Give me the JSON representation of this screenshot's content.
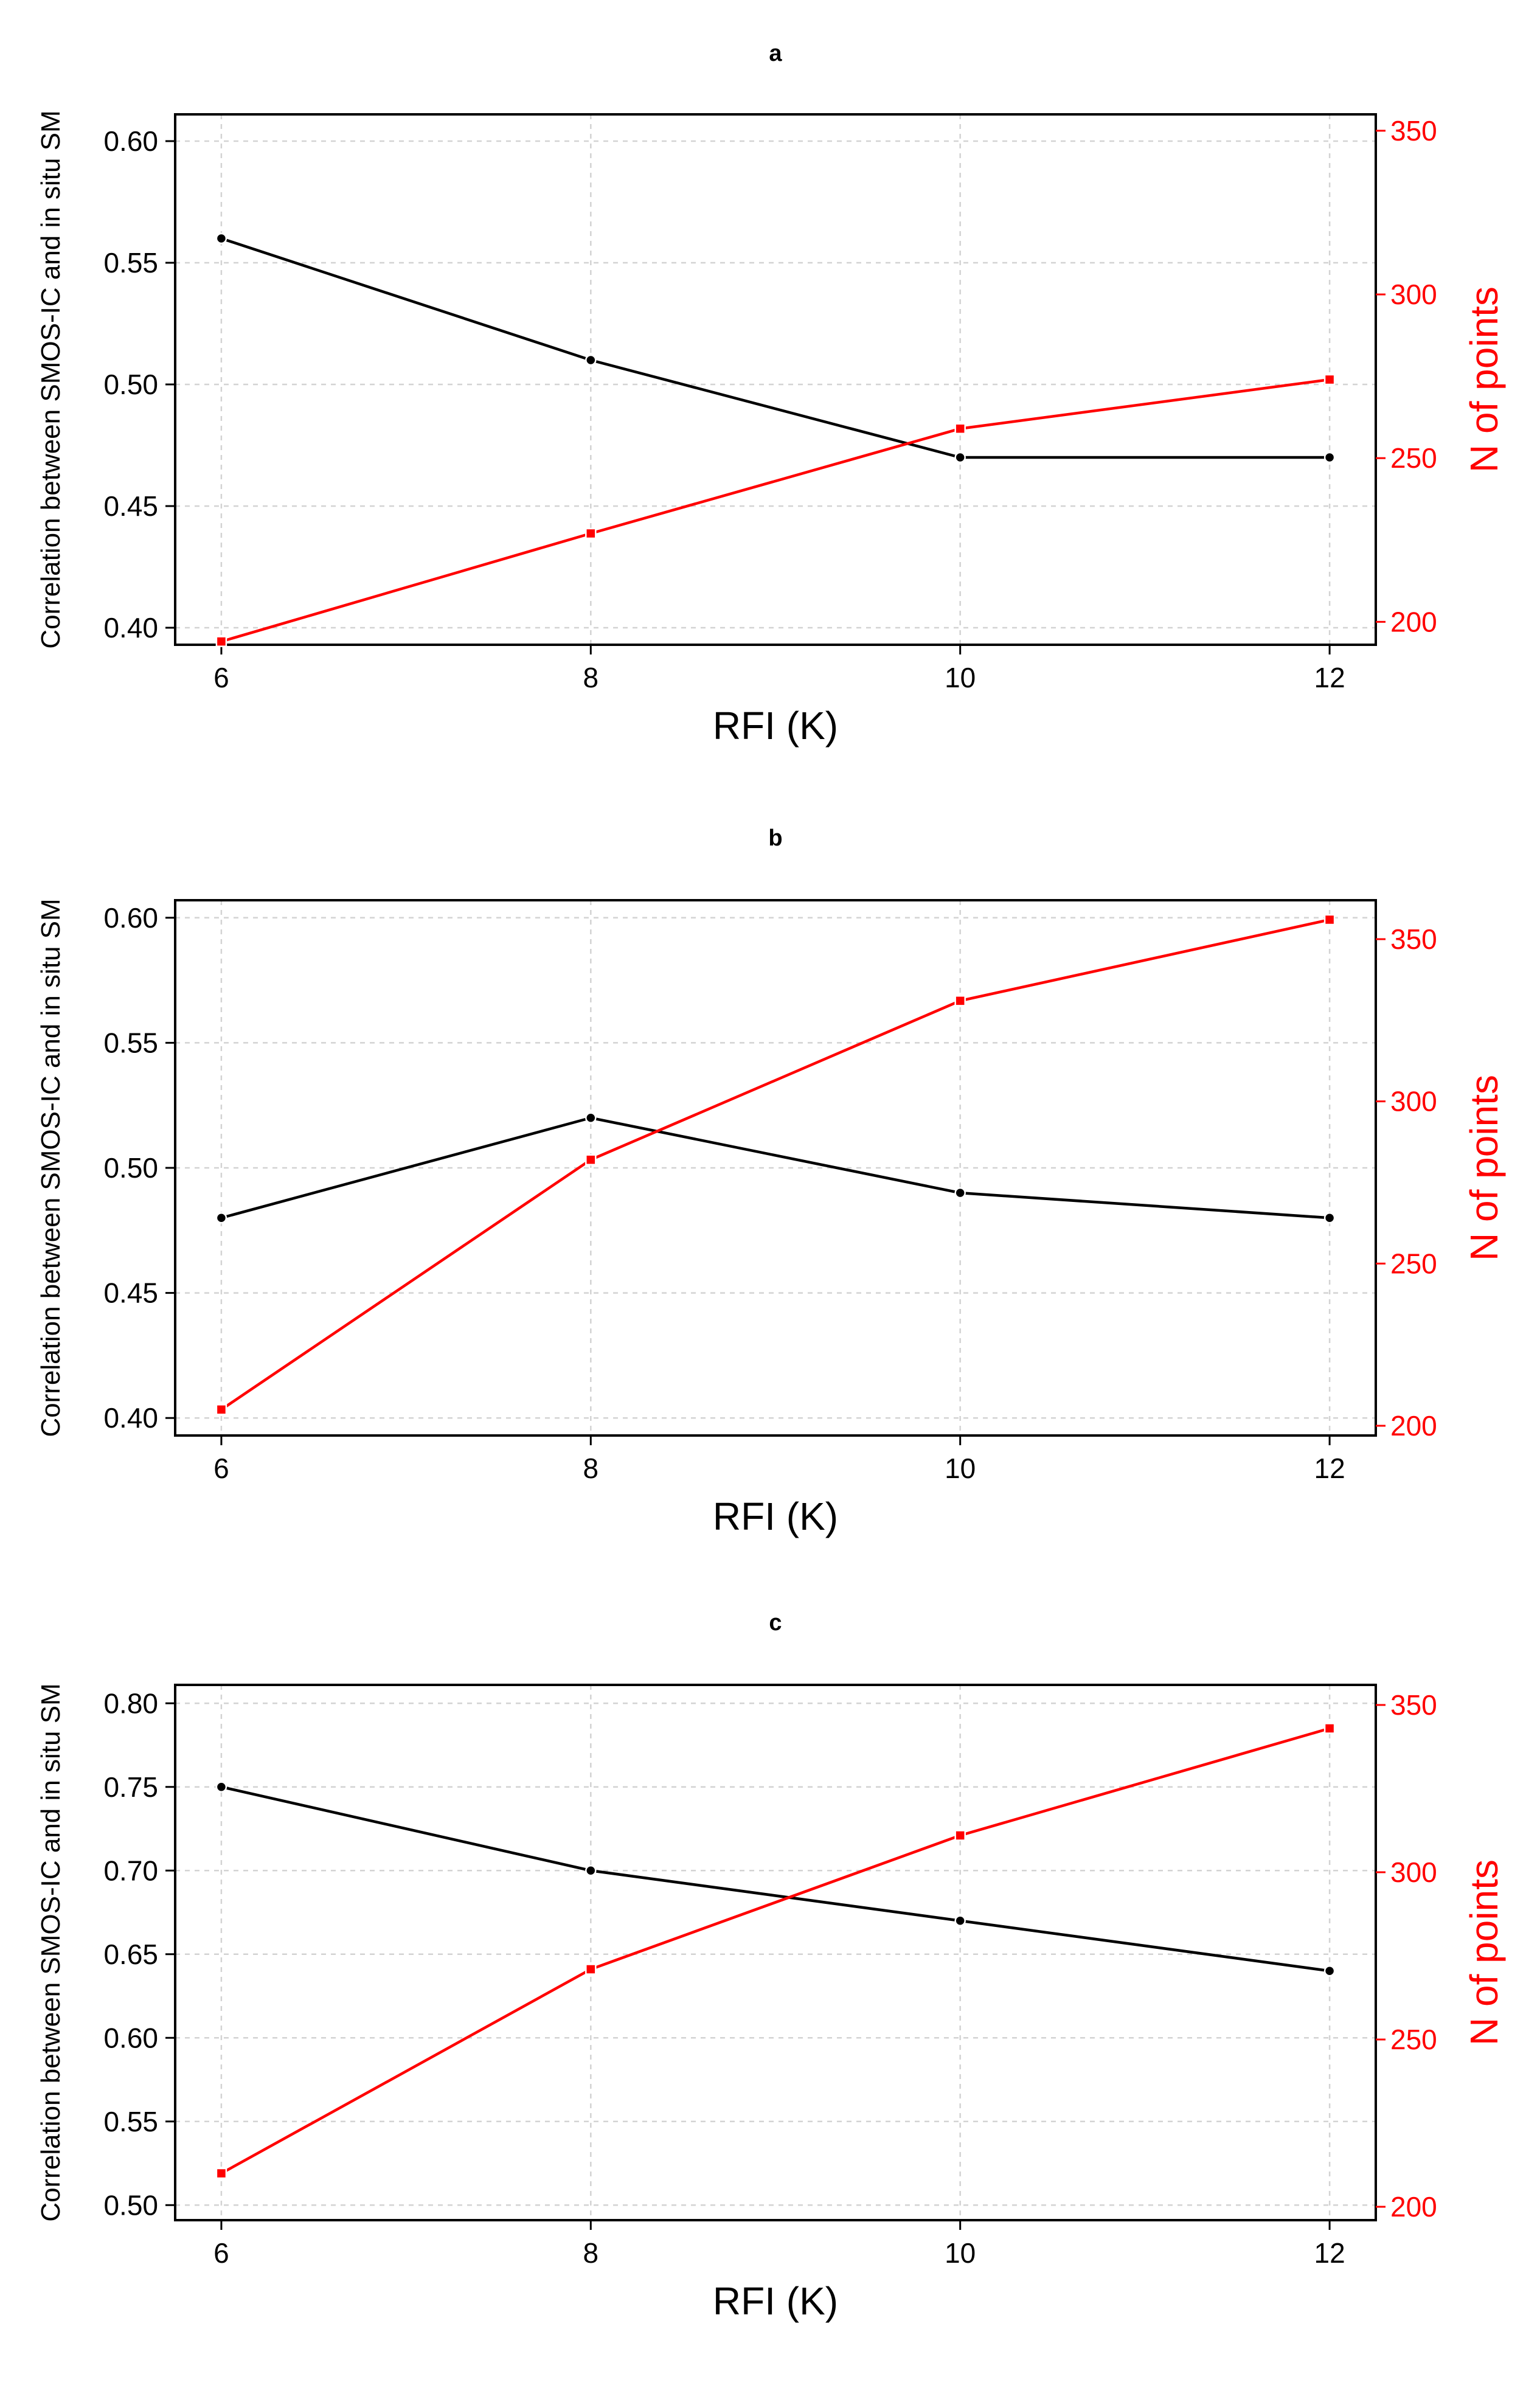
{
  "figure": {
    "description_panels": [
      "a",
      "b",
      "c"
    ]
  },
  "colors": {
    "correlation": "#000000",
    "points": "#ff0000",
    "grid": "#d3d3d3"
  },
  "chart_data": [
    {
      "type": "line",
      "title": "a",
      "xlabel": "RFI (K)",
      "ylabel": "Correlation between SMOS-IC and in situ SM",
      "y2label": "N of points",
      "x": [
        6,
        8,
        10,
        12
      ],
      "xticks": [
        "6",
        "8",
        "10",
        "12"
      ],
      "xlim": [
        5.75,
        12.25
      ],
      "ylim": [
        0.393,
        0.611
      ],
      "yticks": [
        "0.40",
        "0.45",
        "0.50",
        "0.55",
        "0.60"
      ],
      "y2lim": [
        193,
        355
      ],
      "y2ticks": [
        "200",
        "250",
        "300",
        "350"
      ],
      "grid": true,
      "series": [
        {
          "name": "Correlation",
          "axis": "left",
          "color": "#000000",
          "marker": "circle",
          "values": [
            0.56,
            0.51,
            0.47,
            0.47
          ]
        },
        {
          "name": "N of points",
          "axis": "right",
          "color": "#ff0000",
          "marker": "square",
          "values": [
            194,
            227,
            259,
            274
          ]
        }
      ]
    },
    {
      "type": "line",
      "title": "b",
      "xlabel": "RFI (K)",
      "ylabel": "Correlation between SMOS-IC and in situ SM",
      "y2label": "N of points",
      "x": [
        6,
        8,
        10,
        12
      ],
      "xticks": [
        "6",
        "8",
        "10",
        "12"
      ],
      "xlim": [
        5.75,
        12.25
      ],
      "ylim": [
        0.393,
        0.607
      ],
      "yticks": [
        "0.40",
        "0.45",
        "0.50",
        "0.55",
        "0.60"
      ],
      "y2lim": [
        197,
        362
      ],
      "y2ticks": [
        "200",
        "250",
        "300",
        "350"
      ],
      "grid": true,
      "series": [
        {
          "name": "Correlation",
          "axis": "left",
          "color": "#000000",
          "marker": "circle",
          "values": [
            0.48,
            0.52,
            0.49,
            0.48
          ]
        },
        {
          "name": "N of points",
          "axis": "right",
          "color": "#ff0000",
          "marker": "square",
          "values": [
            205,
            282,
            331,
            356
          ]
        }
      ]
    },
    {
      "type": "line",
      "title": "c",
      "xlabel": "RFI (K)",
      "ylabel": "Correlation between SMOS-IC and in situ SM",
      "y2label": "N of points",
      "x": [
        6,
        8,
        10,
        12
      ],
      "xticks": [
        "6",
        "8",
        "10",
        "12"
      ],
      "xlim": [
        5.75,
        12.25
      ],
      "ylim": [
        0.491,
        0.811
      ],
      "yticks": [
        "0.50",
        "0.55",
        "0.60",
        "0.65",
        "0.70",
        "0.75",
        "0.80"
      ],
      "y2lim": [
        196,
        356
      ],
      "y2ticks": [
        "200",
        "250",
        "300",
        "350"
      ],
      "grid": true,
      "series": [
        {
          "name": "Correlation",
          "axis": "left",
          "color": "#000000",
          "marker": "circle",
          "values": [
            0.75,
            0.7,
            0.67,
            0.64
          ]
        },
        {
          "name": "N of points",
          "axis": "right",
          "color": "#ff0000",
          "marker": "square",
          "values": [
            210,
            271,
            311,
            343
          ]
        }
      ]
    }
  ]
}
